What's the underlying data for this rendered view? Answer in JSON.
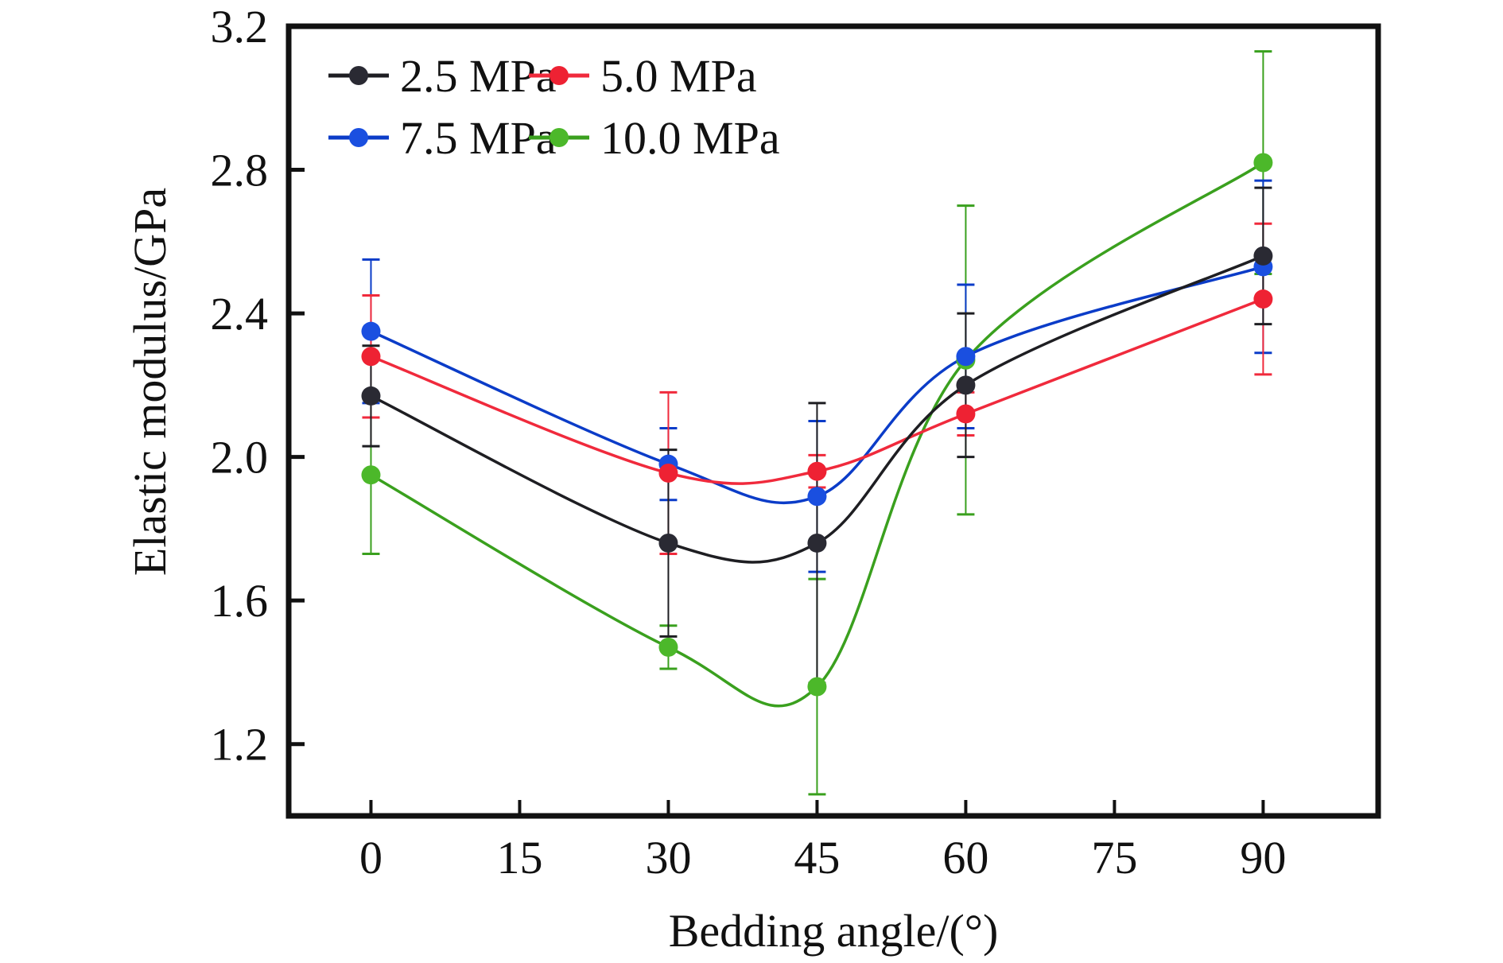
{
  "chart_data": {
    "type": "line",
    "title": "",
    "xlabel": "Bedding angle/(°)",
    "ylabel": "Elastic modulus/GPa",
    "x": [
      0,
      30,
      45,
      60,
      90
    ],
    "xlim": [
      -8.3,
      101.6
    ],
    "ylim": [
      1.0,
      3.2
    ],
    "xticks": [
      0,
      15,
      30,
      45,
      60,
      75,
      90
    ],
    "xtick_labels": [
      "0",
      "15",
      "30",
      "45",
      "60",
      "75",
      "90"
    ],
    "yticks": [
      1.2,
      1.6,
      2.0,
      2.4,
      2.8,
      3.2
    ],
    "ytick_labels": [
      "1.2",
      "1.6",
      "2.0",
      "2.4",
      "2.8",
      "3.2"
    ],
    "grid": false,
    "legend_position": "top-left",
    "smooth": true,
    "series": [
      {
        "name": "2.5 MPa",
        "line_color": "#1e1e22",
        "marker_color": "#2a2a33",
        "values": [
          2.17,
          1.76,
          1.76,
          2.2,
          2.56
        ],
        "error": [
          0.14,
          0.26,
          0.39,
          0.2,
          0.19
        ]
      },
      {
        "name": "5.0 MPa",
        "line_color": "#f02a3c",
        "marker_color": "#ee2233",
        "values": [
          2.28,
          1.955,
          1.96,
          2.12,
          2.44
        ],
        "error": [
          0.17,
          0.225,
          0.045,
          0.06,
          0.21
        ]
      },
      {
        "name": "7.5 MPa",
        "line_color": "#0b3cc8",
        "marker_color": "#1a4fe0",
        "values": [
          2.35,
          1.98,
          1.89,
          2.28,
          2.53
        ],
        "error": [
          0.2,
          0.1,
          0.21,
          0.2,
          0.24
        ]
      },
      {
        "name": "10.0 MPa",
        "line_color": "#3aa01e",
        "marker_color": "#4cb82a",
        "values": [
          1.95,
          1.47,
          1.36,
          2.27,
          2.82
        ],
        "error": [
          0.22,
          0.06,
          0.3,
          0.43,
          0.31
        ]
      }
    ]
  }
}
